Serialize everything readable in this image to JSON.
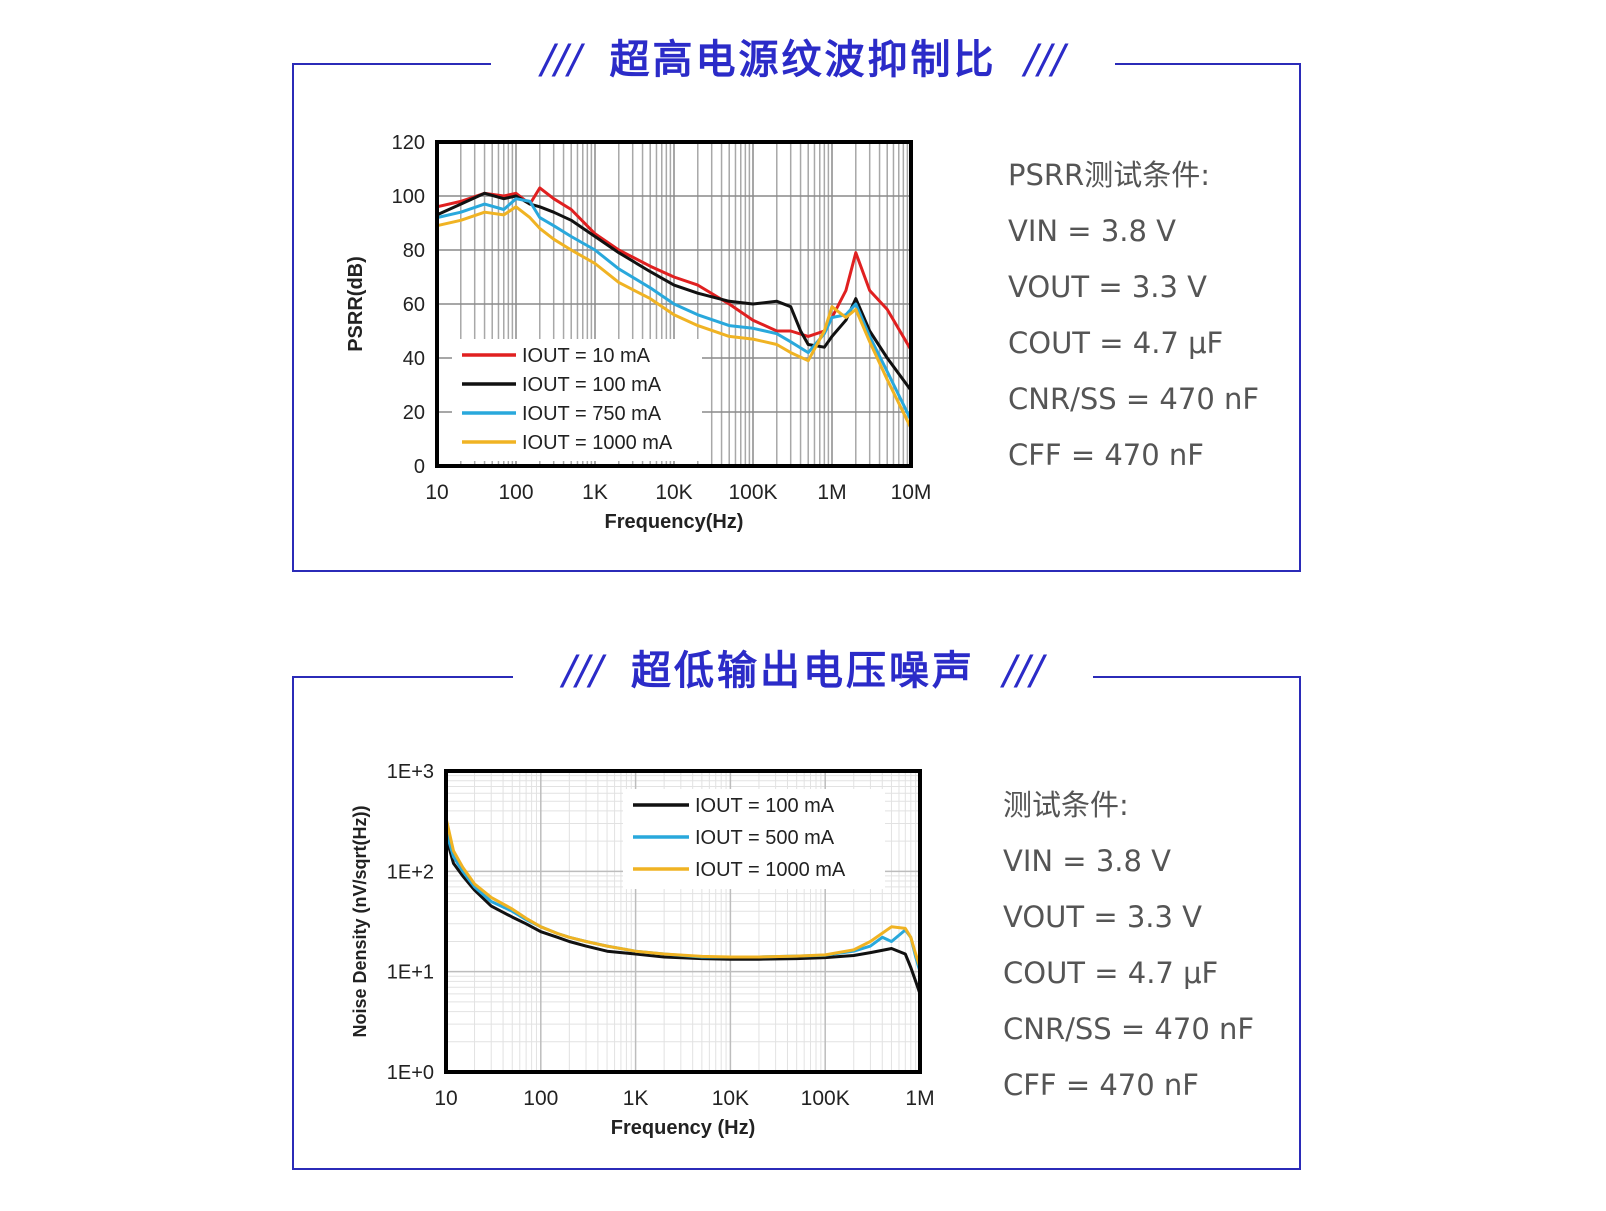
{
  "section1": {
    "title": "超高电源纹波抑制比",
    "slashes_left": "///",
    "slashes_right": "///",
    "conditions": [
      "PSRR测试条件:",
      "VIN = 3.8 V",
      "VOUT = 3.3 V",
      "COUT = 4.7 μF",
      "CNR/SS = 470 nF",
      "CFF = 470 nF"
    ]
  },
  "section2": {
    "title": "超低输出电压噪声",
    "slashes_left": "///",
    "slashes_right": "///",
    "conditions": [
      "测试条件:",
      "VIN = 3.8 V",
      "VOUT = 3.3 V",
      "COUT = 4.7 μF",
      "CNR/SS = 470 nF",
      "CFF = 470 nF"
    ]
  },
  "chart_data": [
    {
      "type": "line",
      "title": "",
      "xlabel": "Frequency(Hz)",
      "ylabel": "PSRR(dB)",
      "x_scale": "log",
      "xlim": [
        10,
        10000000
      ],
      "ylim": [
        0,
        120
      ],
      "x_ticks": [
        10,
        100,
        1000,
        10000,
        100000,
        1000000,
        10000000
      ],
      "x_tick_labels": [
        "10",
        "100",
        "1K",
        "10K",
        "100K",
        "1M",
        "10M"
      ],
      "y_ticks": [
        0,
        20,
        40,
        60,
        80,
        100,
        120
      ],
      "y_tick_labels": [
        "0",
        "20",
        "40",
        "60",
        "80",
        "100",
        "120"
      ],
      "grid": true,
      "legend_position": "bottom-left",
      "series": [
        {
          "name": "IOUT = 10 mA",
          "color": "#e02020",
          "x": [
            10,
            20,
            40,
            70,
            100,
            150,
            200,
            300,
            500,
            1000,
            2000,
            5000,
            10000,
            20000,
            50000,
            100000,
            200000,
            300000,
            500000,
            800000,
            1000000,
            1500000,
            2000000,
            3000000,
            5000000,
            10000000
          ],
          "y": [
            96,
            98,
            101,
            100,
            101,
            97,
            103,
            99,
            95,
            86,
            80,
            74,
            70,
            67,
            60,
            54,
            50,
            50,
            48,
            50,
            55,
            65,
            79,
            65,
            58,
            43
          ]
        },
        {
          "name": "IOUT = 100 mA",
          "color": "#111111",
          "x": [
            10,
            20,
            40,
            70,
            100,
            150,
            200,
            300,
            500,
            1000,
            2000,
            5000,
            10000,
            20000,
            50000,
            100000,
            200000,
            300000,
            400000,
            500000,
            800000,
            1000000,
            1500000,
            2000000,
            3000000,
            5000000,
            10000000
          ],
          "y": [
            93,
            97,
            101,
            99,
            100,
            97,
            96,
            94,
            91,
            85,
            79,
            72,
            67,
            64,
            61,
            60,
            61,
            59,
            50,
            45,
            44,
            48,
            54,
            62,
            50,
            40,
            28
          ]
        },
        {
          "name": "IOUT = 750 mA",
          "color": "#29a8dc",
          "x": [
            10,
            20,
            40,
            70,
            100,
            150,
            200,
            300,
            500,
            1000,
            2000,
            5000,
            10000,
            20000,
            50000,
            100000,
            200000,
            300000,
            500000,
            800000,
            1000000,
            1500000,
            2000000,
            3000000,
            5000000,
            10000000
          ],
          "y": [
            92,
            94,
            97,
            95,
            99,
            98,
            92,
            89,
            85,
            80,
            73,
            66,
            60,
            56,
            52,
            51,
            49,
            46,
            42,
            49,
            55,
            56,
            60,
            48,
            35,
            17
          ]
        },
        {
          "name": "IOUT = 1000 mA",
          "color": "#f0b323",
          "x": [
            10,
            20,
            40,
            70,
            100,
            150,
            200,
            300,
            500,
            1000,
            2000,
            5000,
            10000,
            20000,
            50000,
            100000,
            200000,
            300000,
            500000,
            800000,
            1000000,
            1500000,
            2000000,
            3000000,
            5000000,
            10000000
          ],
          "y": [
            89,
            91,
            94,
            93,
            96,
            92,
            88,
            84,
            80,
            75,
            68,
            62,
            56,
            52,
            48,
            47,
            45,
            42,
            39,
            50,
            59,
            55,
            58,
            46,
            32,
            14
          ]
        }
      ]
    },
    {
      "type": "line",
      "title": "",
      "xlabel": "Frequency (Hz)",
      "ylabel": "Noise Density (nV/sqrt(Hz))",
      "x_scale": "log",
      "y_scale": "log",
      "xlim": [
        10,
        1000000
      ],
      "ylim": [
        1,
        1000
      ],
      "x_ticks": [
        10,
        100,
        1000,
        10000,
        100000,
        1000000
      ],
      "x_tick_labels": [
        "10",
        "100",
        "1K",
        "10K",
        "100K",
        "1M"
      ],
      "y_ticks": [
        1,
        10,
        100,
        1000
      ],
      "y_tick_labels": [
        "1E+0",
        "1E+1",
        "1E+2",
        "1E+3"
      ],
      "grid": true,
      "legend_position": "top-right",
      "series": [
        {
          "name": "IOUT = 100 mA",
          "color": "#111111",
          "x": [
            10,
            12,
            15,
            20,
            30,
            50,
            70,
            100,
            150,
            200,
            300,
            500,
            1000,
            2000,
            5000,
            10000,
            20000,
            50000,
            100000,
            200000,
            300000,
            500000,
            700000,
            800000,
            900000,
            1000000
          ],
          "y": [
            220,
            120,
            90,
            65,
            45,
            35,
            30,
            25,
            22,
            20,
            18,
            16,
            15,
            14,
            13.5,
            13.3,
            13.3,
            13.5,
            13.8,
            14.5,
            15.5,
            17,
            15,
            11,
            8,
            6
          ]
        },
        {
          "name": "IOUT = 500 mA",
          "color": "#29a8dc",
          "x": [
            10,
            12,
            15,
            20,
            30,
            50,
            70,
            100,
            150,
            200,
            300,
            500,
            1000,
            2000,
            5000,
            10000,
            20000,
            50000,
            100000,
            200000,
            300000,
            400000,
            500000,
            700000,
            800000,
            900000,
            1000000
          ],
          "y": [
            250,
            140,
            100,
            70,
            50,
            40,
            33,
            28,
            24,
            22,
            20,
            18,
            16,
            15,
            14,
            14,
            14,
            14.3,
            14.6,
            16,
            18,
            22,
            20,
            26,
            22,
            14,
            10
          ]
        },
        {
          "name": "IOUT = 1000 mA",
          "color": "#f0b323",
          "x": [
            10,
            12,
            15,
            20,
            30,
            50,
            70,
            100,
            150,
            200,
            300,
            500,
            1000,
            2000,
            5000,
            10000,
            20000,
            50000,
            100000,
            200000,
            300000,
            500000,
            700000,
            800000,
            900000,
            1000000
          ],
          "y": [
            340,
            160,
            110,
            75,
            55,
            42,
            34,
            28,
            24,
            22,
            20,
            18,
            16,
            15,
            14.2,
            14,
            14,
            14.3,
            14.7,
            16.5,
            20,
            28,
            27,
            22,
            15,
            11
          ]
        }
      ]
    }
  ]
}
